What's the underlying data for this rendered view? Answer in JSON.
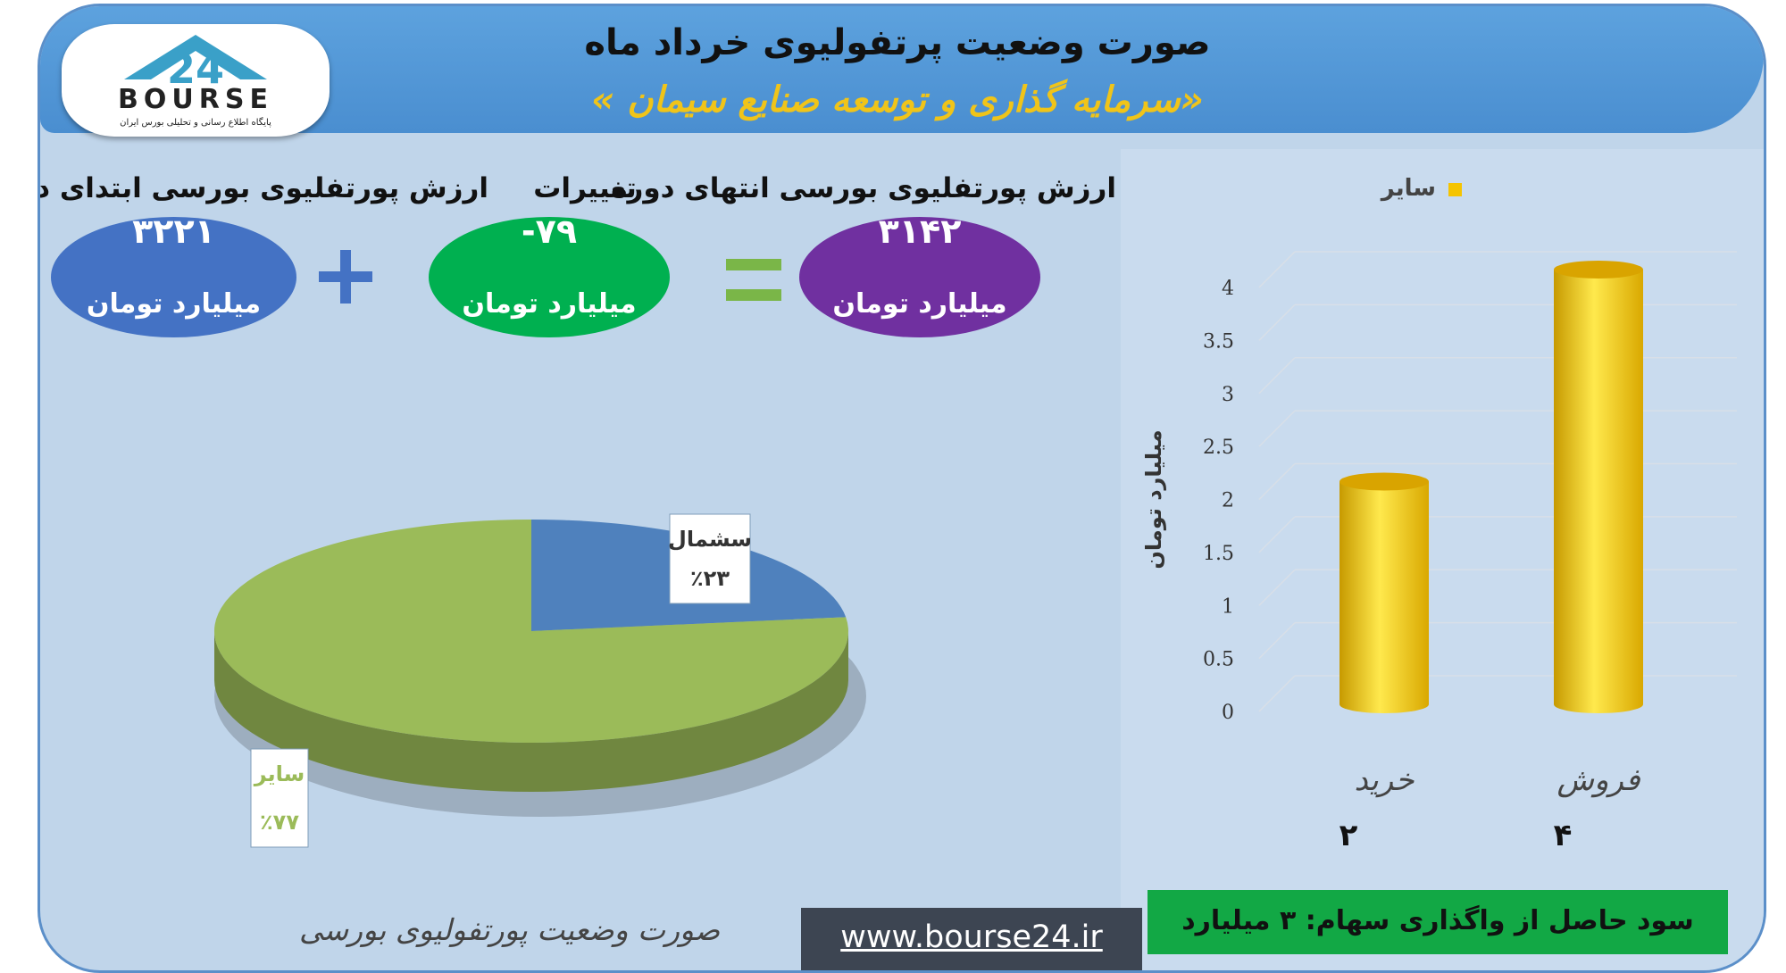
{
  "header": {
    "title": "صورت وضعیت پرتفولیوی خرداد ماه",
    "subtitle": "«سرمایه گذاری و توسعه صنایع سیمان »",
    "logo_text": "BOURSE",
    "logo_number": "24",
    "logo_tagline": "پایگاه اطلاع رسانی و تحلیلی بورس ایران"
  },
  "summary": {
    "start": {
      "label": "ارزش پورتفلیوی بورسی ابتدای دوره",
      "value": "۳۲۲۱",
      "unit": "میلیارد تومان",
      "color": "#4472c4"
    },
    "plus_symbol": "+",
    "change": {
      "label": "تغییرات",
      "value": "-۷۹",
      "unit": "میلیارد تومان",
      "color": "#00b050"
    },
    "equals_symbol": "=",
    "end": {
      "label": "ارزش پورتفلیوی بورسی انتهای دوره",
      "value": "۳۱۴۲",
      "unit": "میلیارد تومان",
      "color": "#7030a0"
    }
  },
  "pie_caption": "صورت وضعیت پورتفولیوی بورسی",
  "profit_text": "سود حاصل از واگذاری سهام: ۳ میلیارد تومان",
  "watermark": "www.bourse24.ir",
  "chart_data": [
    {
      "type": "pie",
      "slices": [
        {
          "label": "سشمال",
          "value": 23,
          "value_label": "٪۲۳",
          "color": "#4f81bd"
        },
        {
          "label": "سایر",
          "value": 77,
          "value_label": "٪۷۷",
          "color": "#9bbb59"
        }
      ]
    },
    {
      "type": "bar",
      "categories": [
        "خرید",
        "فروش"
      ],
      "category_value_labels": [
        "۲",
        "۴"
      ],
      "series": [
        {
          "name": "سایر",
          "values": [
            2,
            4
          ],
          "color": "#f5c400"
        }
      ],
      "ylabel": "میلیارد تومان",
      "ylim": [
        0,
        4
      ],
      "yticks": [
        0,
        0.5,
        1,
        1.5,
        2,
        2.5,
        3,
        3.5,
        4
      ],
      "legend": "top",
      "grid": true
    }
  ]
}
